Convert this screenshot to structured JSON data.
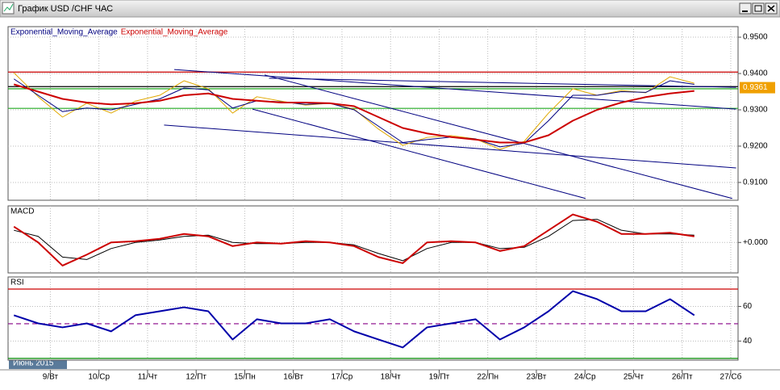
{
  "window": {
    "title": "График USD /CHF ЧАС"
  },
  "time_axis": {
    "xlim": [
      -0.87,
      14.15
    ],
    "xticks": [
      {
        "value": 0,
        "label": "9/Вт"
      },
      {
        "value": 1,
        "label": "10/Ср"
      },
      {
        "value": 2,
        "label": "11/Чт"
      },
      {
        "value": 3,
        "label": "12/Пт"
      },
      {
        "value": 4,
        "label": "15/Пн"
      },
      {
        "value": 5,
        "label": "16/Вт"
      },
      {
        "value": 6,
        "label": "17/Ср"
      },
      {
        "value": 7,
        "label": "18/Чт"
      },
      {
        "value": 8,
        "label": "19/Пт"
      },
      {
        "value": 9,
        "label": "22/Пн"
      },
      {
        "value": 10,
        "label": "23/Вт"
      },
      {
        "value": 11,
        "label": "24/Ср"
      },
      {
        "value": 12,
        "label": "25/Чт"
      },
      {
        "value": 13,
        "label": "26/Пт"
      },
      {
        "value": 14,
        "label": "27/Сб"
      }
    ],
    "period_label": "Июнь 2015",
    "x": [
      -0.75,
      -0.25,
      0.25,
      0.75,
      1.25,
      1.75,
      2.25,
      2.75,
      3.25,
      3.75,
      4.25,
      4.75,
      5.25,
      5.75,
      6.25,
      6.75,
      7.25,
      7.75,
      8.25,
      8.75,
      9.25,
      9.75,
      10.25,
      10.75,
      11.25,
      11.75,
      12.25,
      12.75,
      13.25
    ]
  },
  "price_panel": {
    "legend": [
      {
        "text": "Exponential_Moving_Average",
        "color": "#000080"
      },
      {
        "text": "Exponential_Moving_Average",
        "color": "#cc0000"
      }
    ],
    "ylim": [
      0.9051,
      0.9529
    ],
    "yticks": [
      {
        "value": 0.91,
        "label": "0.9100"
      },
      {
        "value": 0.92,
        "label": "0.9200"
      },
      {
        "value": 0.93,
        "label": "0.9300"
      },
      {
        "value": 0.94,
        "label": "0.9400"
      },
      {
        "value": 0.95,
        "label": "0.9500"
      }
    ],
    "last_price": {
      "value": 0.9361,
      "label": "0.9361"
    },
    "levels": [
      {
        "value": 0.9404,
        "color": "#cc0000"
      },
      {
        "value": 0.9364,
        "color": "#000000"
      },
      {
        "value": 0.9358,
        "color": "#009900"
      },
      {
        "value": 0.9304,
        "color": "#22aa22"
      }
    ],
    "trendlines": [
      {
        "x": [
          2.55,
          14.11
        ],
        "y": [
          0.9411,
          0.9302
        ],
        "color": "#000080"
      },
      {
        "x": [
          2.34,
          14.11
        ],
        "y": [
          0.9258,
          0.914
        ],
        "color": "#000080"
      },
      {
        "x": [
          4.16,
          11.01
        ],
        "y": [
          0.9302,
          0.9056
        ],
        "color": "#000080"
      },
      {
        "x": [
          4.41,
          14.03
        ],
        "y": [
          0.9396,
          0.9056
        ],
        "color": "#000080"
      },
      {
        "x": [
          4.5,
          14.11
        ],
        "y": [
          0.9387,
          0.9362
        ],
        "color": "#000080"
      }
    ],
    "lines": [
      {
        "color": "#e0a800",
        "values": [
          0.9402,
          0.9336,
          0.928,
          0.9318,
          0.9291,
          0.9324,
          0.934,
          0.938,
          0.9358,
          0.9291,
          0.9336,
          0.9324,
          0.9313,
          0.9318,
          0.9302,
          0.9247,
          0.9202,
          0.9224,
          0.9229,
          0.922,
          0.9191,
          0.9213,
          0.9291,
          0.9358,
          0.934,
          0.9353,
          0.9347,
          0.9391,
          0.9373
        ]
      },
      {
        "color": "#000080",
        "values": [
          0.9385,
          0.934,
          0.9295,
          0.9305,
          0.93,
          0.9315,
          0.933,
          0.936,
          0.9355,
          0.9305,
          0.9325,
          0.9322,
          0.9315,
          0.9318,
          0.93,
          0.9255,
          0.921,
          0.9218,
          0.9225,
          0.922,
          0.9198,
          0.9208,
          0.927,
          0.934,
          0.934,
          0.935,
          0.9348,
          0.938,
          0.937
        ]
      },
      {
        "color": "#cc0000",
        "values": [
          0.937,
          0.935,
          0.933,
          0.932,
          0.9315,
          0.9318,
          0.9325,
          0.934,
          0.9345,
          0.933,
          0.9325,
          0.932,
          0.932,
          0.9318,
          0.931,
          0.928,
          0.925,
          0.9235,
          0.9225,
          0.9218,
          0.921,
          0.921,
          0.923,
          0.927,
          0.93,
          0.932,
          0.9335,
          0.9345,
          0.9352
        ]
      }
    ]
  },
  "macd_panel": {
    "label": "MACD",
    "ylim": [
      -0.0025,
      0.003
    ],
    "yticks": [
      {
        "value": 0,
        "label": "+0.000"
      }
    ],
    "levels": [],
    "lines": [
      {
        "color": "#000000",
        "values": [
          0.001,
          0.0005,
          -0.0012,
          -0.0014,
          -0.0005,
          0,
          0.0002,
          0.0005,
          0.0006,
          0,
          -0.0001,
          -0.0001,
          0,
          0,
          -0.0002,
          -0.0009,
          -0.0015,
          -0.0005,
          0,
          0,
          -0.0005,
          -0.0004,
          0.0005,
          0.0018,
          0.0019,
          0.001,
          0.0007,
          0.0007,
          0.0006
        ]
      },
      {
        "color": "#cc0000",
        "values": [
          0.0013,
          0,
          -0.0019,
          -0.001,
          0,
          0.0001,
          0.0003,
          0.0007,
          0.0005,
          -0.0003,
          0,
          -0.0001,
          0.0001,
          0,
          -0.0003,
          -0.0012,
          -0.0017,
          0,
          0.0001,
          0,
          -0.0007,
          -0.0003,
          0.001,
          0.0023,
          0.0017,
          0.0007,
          0.0007,
          0.0008,
          0.0005
        ]
      }
    ]
  },
  "rsi_panel": {
    "label": "RSI",
    "ylim": [
      29,
      77
    ],
    "yticks": [
      40,
      60
    ],
    "levels": [
      {
        "value": 70,
        "color": "#cc0000"
      },
      {
        "value": 50,
        "color": "#880088",
        "dashed": true
      },
      {
        "value": 30,
        "color": "#008800"
      }
    ],
    "lines": [
      {
        "color": "#0000aa",
        "values": [
          54.9,
          50.2,
          47.9,
          50.2,
          45.6,
          54.9,
          57.2,
          59.5,
          57.2,
          40.9,
          52.6,
          50.2,
          50.2,
          52.6,
          45.6,
          40.9,
          36.3,
          47.9,
          50.2,
          52.6,
          40.9,
          47.9,
          57.2,
          68.8,
          64.2,
          57.2,
          57.2,
          64.2,
          54.9
        ]
      }
    ]
  }
}
